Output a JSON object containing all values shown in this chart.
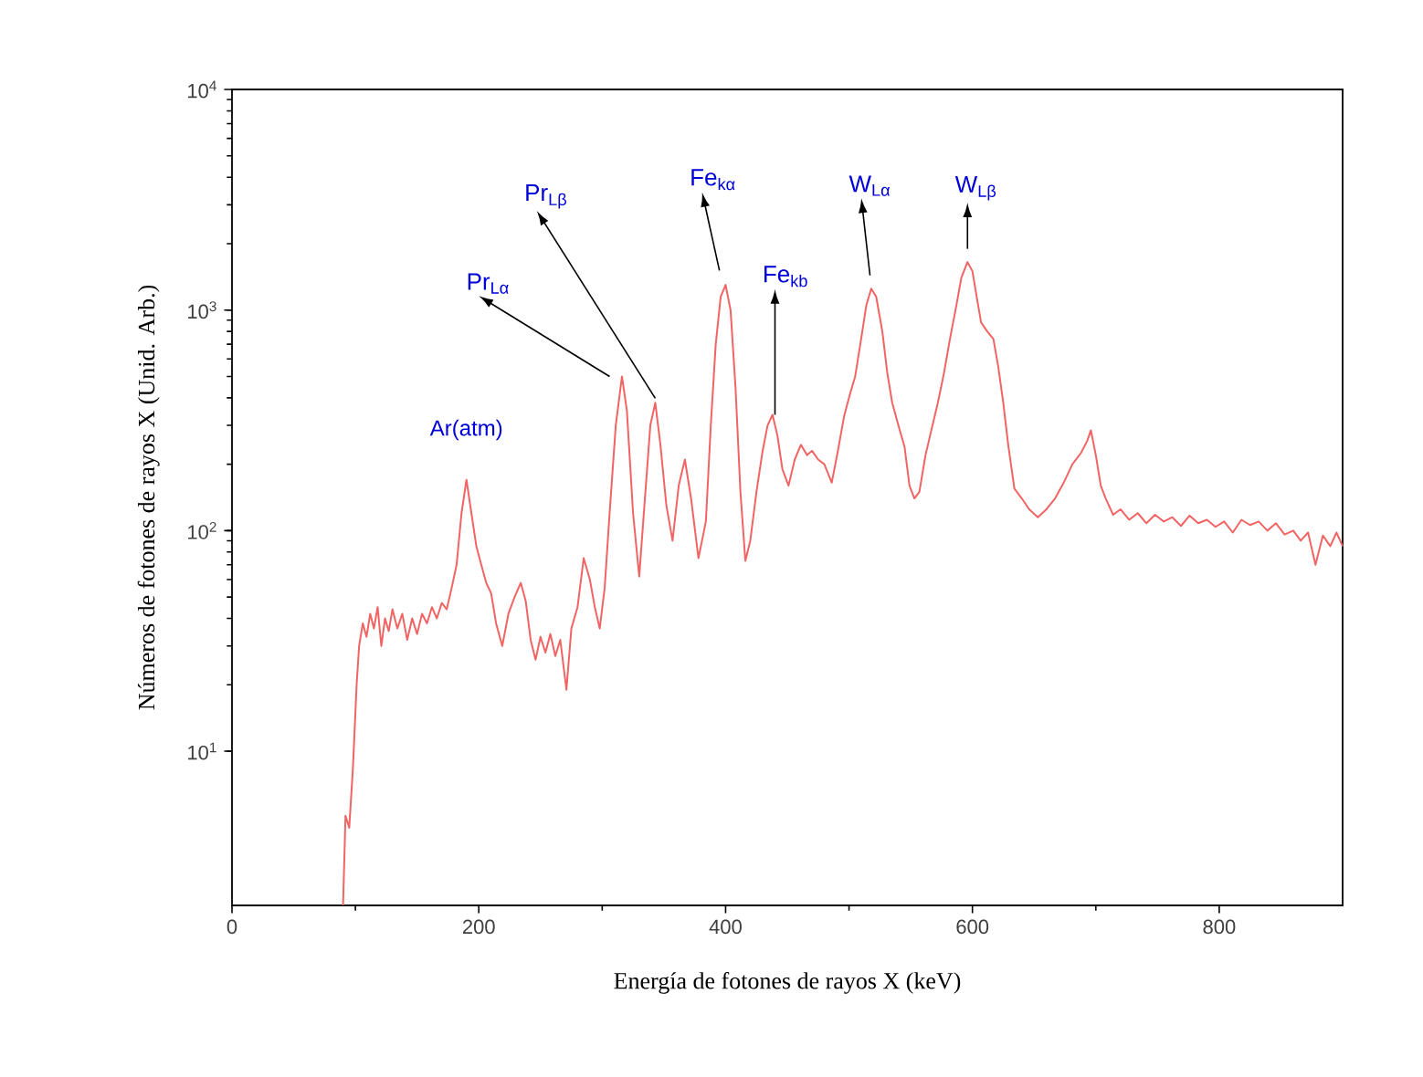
{
  "chart_data": {
    "type": "line",
    "xlabel": "Energía de fotones de rayos X (keV)",
    "ylabel": "Números de fotones de rayos X (Unid. Arb.)",
    "log": "y",
    "xlim": [
      0,
      900
    ],
    "xticks": [
      0,
      200,
      400,
      600,
      800
    ],
    "ylim": [
      2,
      10000
    ],
    "yticks": [
      {
        "value": 10,
        "label": "10$^{1}$"
      },
      {
        "value": 100,
        "label": "10$^{2}$"
      },
      {
        "value": 1000,
        "label": "10$^{3}$"
      },
      {
        "value": 10000,
        "label": "10$^{4}$"
      }
    ],
    "grid": false,
    "marker": "none",
    "line_style": "solid",
    "x": [
      90,
      92,
      95,
      98,
      101,
      103,
      106,
      109,
      112,
      115,
      118,
      121,
      124,
      127,
      130,
      134,
      138,
      142,
      146,
      150,
      154,
      158,
      162,
      166,
      170,
      174,
      178,
      182,
      186,
      190,
      194,
      198,
      202,
      206,
      210,
      214,
      219,
      224,
      229,
      234,
      238,
      242,
      246,
      250,
      254,
      258,
      262,
      266,
      271,
      275,
      280,
      285,
      290,
      294,
      298,
      302,
      306,
      311,
      316,
      320,
      325,
      330,
      335,
      339,
      343,
      347,
      352,
      357,
      362,
      367,
      372,
      378,
      384,
      388,
      392,
      396,
      400,
      404,
      408,
      412,
      416,
      420,
      425,
      430,
      434,
      438,
      442,
      446,
      451,
      456,
      461,
      466,
      470,
      475,
      480,
      486,
      491,
      496,
      501,
      505,
      510,
      514,
      518,
      522,
      527,
      531,
      535,
      540,
      545,
      549,
      553,
      557,
      562,
      567,
      572,
      577,
      582,
      587,
      591,
      596,
      600,
      604,
      607,
      612,
      617,
      621,
      625,
      629,
      634,
      640,
      646,
      653,
      660,
      667,
      674,
      681,
      688,
      693,
      696,
      700,
      704,
      708,
      714,
      720,
      727,
      734,
      741,
      748,
      755,
      762,
      769,
      776,
      783,
      790,
      797,
      804,
      811,
      818,
      825,
      832,
      839,
      846,
      853,
      860,
      866,
      872,
      878,
      884,
      890,
      895,
      900
    ],
    "series": [
      {
        "color": "#f26464",
        "values": [
          2,
          5.1,
          4.5,
          8.4,
          20,
          30,
          38,
          33,
          42,
          36,
          45,
          30,
          40,
          35,
          44,
          36,
          42,
          32,
          40,
          34,
          42,
          38,
          45,
          40,
          47,
          44,
          55,
          70,
          120,
          170,
          120,
          85,
          70,
          58,
          52,
          38,
          30,
          42,
          50,
          58,
          48,
          32,
          26,
          33,
          28,
          34,
          27,
          32,
          19,
          36,
          45,
          75,
          60,
          45,
          36,
          55,
          120,
          300,
          500,
          350,
          120,
          62,
          150,
          300,
          380,
          250,
          130,
          90,
          160,
          210,
          140,
          75,
          110,
          300,
          700,
          1150,
          1300,
          1000,
          450,
          150,
          73,
          90,
          150,
          230,
          300,
          335,
          270,
          190,
          160,
          210,
          245,
          220,
          230,
          210,
          200,
          165,
          230,
          330,
          420,
          500,
          750,
          1050,
          1250,
          1150,
          800,
          520,
          380,
          300,
          240,
          160,
          140,
          150,
          220,
          290,
          380,
          520,
          750,
          1050,
          1400,
          1650,
          1500,
          1100,
          880,
          800,
          740,
          550,
          380,
          245,
          155,
          140,
          125,
          115,
          125,
          140,
          165,
          200,
          225,
          255,
          285,
          220,
          160,
          140,
          118,
          125,
          112,
          120,
          108,
          118,
          110,
          115,
          105,
          117,
          108,
          112,
          104,
          110,
          98,
          112,
          106,
          110,
          100,
          108,
          96,
          100,
          90,
          98,
          70,
          95,
          85,
          98,
          85
        ]
      }
    ],
    "annotations": [
      {
        "text": "Ar(atm)",
        "x": 190,
        "y": 170
      },
      {
        "text": "Pr$_{Lα}$",
        "x": 316,
        "y": 500
      },
      {
        "text": "Pr$_{Lβ}$",
        "x": 343,
        "y": 380
      },
      {
        "text": "Fe$_{kα}$",
        "x": 400,
        "y": 1300
      },
      {
        "text": "Fe$_{kb}$",
        "x": 438,
        "y": 335
      },
      {
        "text": "W$_{Lα}$",
        "x": 518,
        "y": 1250
      },
      {
        "text": "W$_{Lβ}$",
        "x": 596,
        "y": 1650
      }
    ]
  }
}
